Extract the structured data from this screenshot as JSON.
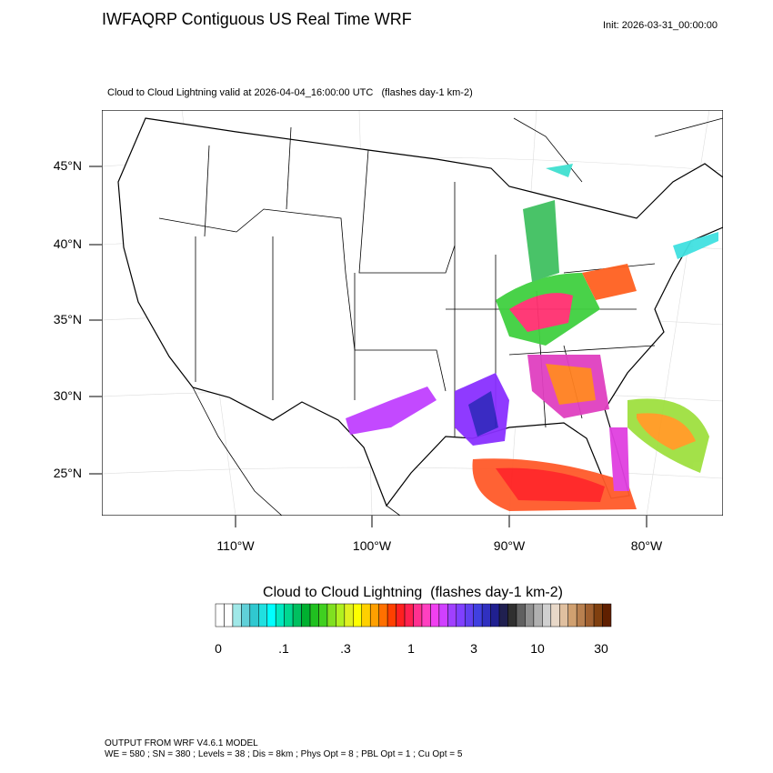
{
  "header": {
    "title": "IWFAQRP Contiguous US Real Time WRF",
    "init": "Init: 2026-03-31_00:00:00"
  },
  "map": {
    "subtitle": "Cloud to Cloud Lightning valid at 2026-04-04_16:00:00 UTC   (flashes day-1 km-2)",
    "lat_labels": [
      "45°N",
      "40°N",
      "35°N",
      "30°N",
      "25°N"
    ],
    "lon_labels": [
      "110°W",
      "100°W",
      "90°W",
      "80°W"
    ]
  },
  "colorbar": {
    "title": "Cloud to Cloud Lightning  (flashes day-1 km-2)",
    "labels": [
      "0",
      ".1",
      ".3",
      "1",
      "3",
      "10",
      "30"
    ]
  },
  "footer": {
    "line1": "OUTPUT FROM WRF V4.6.1 MODEL",
    "line2": "WE = 580 ; SN = 380 ; Levels = 38 ; Dis = 8km ; Phys Opt = 8 ; PBL Opt = 1 ; Cu Opt = 5"
  }
}
